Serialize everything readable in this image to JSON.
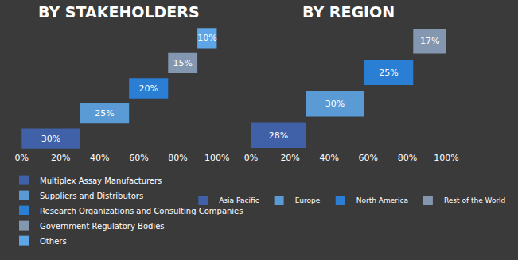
{
  "chart_data": [
    {
      "type": "bar",
      "title": "BY STAKEHOLDERS",
      "orientation": "horizontal",
      "stacked": true,
      "data_labels": true,
      "legend": "bottom",
      "grid": false,
      "tick_labels": "x",
      "xlim": [
        0,
        100
      ],
      "xticks": [
        {
          "value": 0,
          "label": "0%"
        },
        {
          "value": 20,
          "label": "20%"
        },
        {
          "value": 40,
          "label": "40%"
        },
        {
          "value": 60,
          "label": "60%"
        },
        {
          "value": 80,
          "label": "80%"
        },
        {
          "value": 100,
          "label": "100%"
        }
      ],
      "series": [
        {
          "name": "Multiplex Assay Manufacturers",
          "color": "#4060a8",
          "values": [
            30
          ],
          "value_labels": [
            "30%"
          ]
        },
        {
          "name": "Suppliers and Distributors",
          "color": "#5b9bd5",
          "values": [
            25
          ],
          "value_labels": [
            "25%"
          ]
        },
        {
          "name": "Research Organizations and Consulting Companies",
          "color": "#2a7fd4",
          "values": [
            20
          ],
          "value_labels": [
            "20%"
          ]
        },
        {
          "name": "Government Regulatory Bodies",
          "color": "#8497b0",
          "values": [
            15
          ],
          "value_labels": [
            "15%"
          ]
        },
        {
          "name": "Others",
          "color": "#5ea6e8",
          "values": [
            10
          ],
          "value_labels": [
            "10%"
          ]
        }
      ]
    },
    {
      "type": "bar",
      "title": "BY REGION",
      "orientation": "horizontal",
      "stacked": true,
      "data_labels": true,
      "legend": "bottom",
      "grid": false,
      "tick_labels": "x",
      "xlim": [
        0,
        100
      ],
      "xticks": [
        {
          "value": 0,
          "label": "0%"
        },
        {
          "value": 20,
          "label": "20%"
        },
        {
          "value": 40,
          "label": "40%"
        },
        {
          "value": 60,
          "label": "60%"
        },
        {
          "value": 80,
          "label": "80%"
        },
        {
          "value": 100,
          "label": "100%"
        }
      ],
      "series": [
        {
          "name": "Asia Pacific",
          "color": "#4060a8",
          "values": [
            28
          ],
          "value_labels": [
            "28%"
          ]
        },
        {
          "name": "Europe",
          "color": "#5b9bd5",
          "values": [
            30
          ],
          "value_labels": [
            "30%"
          ]
        },
        {
          "name": "North America",
          "color": "#2a7fd4",
          "values": [
            25
          ],
          "value_labels": [
            "25%"
          ]
        },
        {
          "name": "Rest of the World",
          "color": "#8497b0",
          "values": [
            17
          ],
          "value_labels": [
            "17%"
          ]
        }
      ]
    }
  ]
}
